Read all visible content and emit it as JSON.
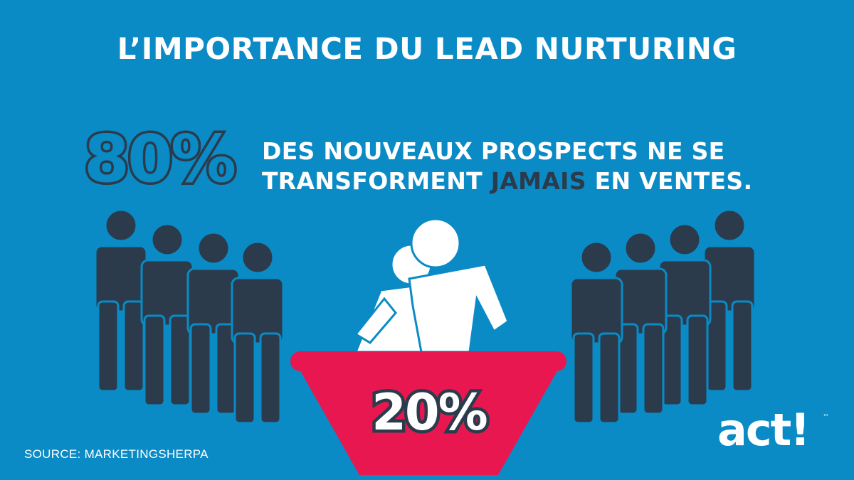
{
  "title": "L’IMPORTANCE DU LEAD NURTURING",
  "headline": {
    "percent": "80%",
    "line1": "DES NOUVEAUX PROSPECTS NE SE",
    "line2_before": "TRANSFORMENT ",
    "line2_emphasis": "JAMAIS",
    "line2_after": " EN VENTES."
  },
  "funnel": {
    "percent": "20%"
  },
  "source": "SOURCE: MARKETINGSHERPA",
  "logo": {
    "text": "act!",
    "trademark": "™"
  },
  "colors": {
    "background": "#0a8bc6",
    "dark": "#2b3b4c",
    "funnel": "#e8174f",
    "white": "#ffffff"
  },
  "icons": [
    "person-silhouette-icon",
    "hugging-couple-icon",
    "funnel-icon"
  ]
}
